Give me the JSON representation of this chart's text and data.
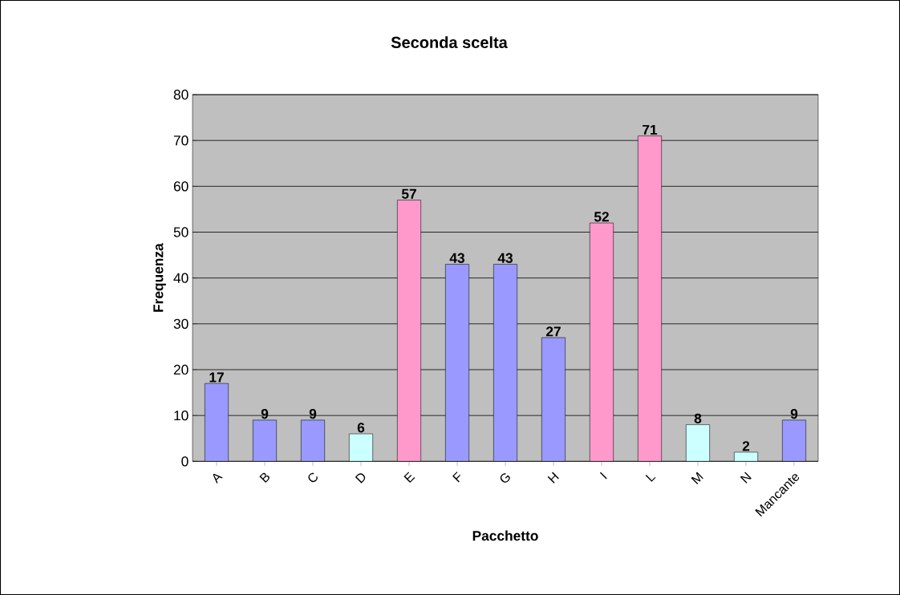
{
  "chart_data": {
    "type": "bar",
    "title": "Seconda scelta",
    "xlabel": "Pacchetto",
    "ylabel": "Frequenza",
    "categories": [
      "A",
      "B",
      "C",
      "D",
      "E",
      "F",
      "G",
      "H",
      "I",
      "L",
      "M",
      "N",
      "Mancante"
    ],
    "values": [
      17,
      9,
      9,
      6,
      57,
      43,
      43,
      27,
      52,
      71,
      8,
      2,
      9
    ],
    "colors": [
      "#9999ff",
      "#9999ff",
      "#9999ff",
      "#ccffff",
      "#ff99cc",
      "#9999ff",
      "#9999ff",
      "#9999ff",
      "#ff99cc",
      "#ff99cc",
      "#ccffff",
      "#ccffff",
      "#9999ff"
    ],
    "ylim": [
      0,
      80
    ],
    "yticks": [
      0,
      10,
      20,
      30,
      40,
      50,
      60,
      70,
      80
    ],
    "grid": "y",
    "data_labels": true
  }
}
